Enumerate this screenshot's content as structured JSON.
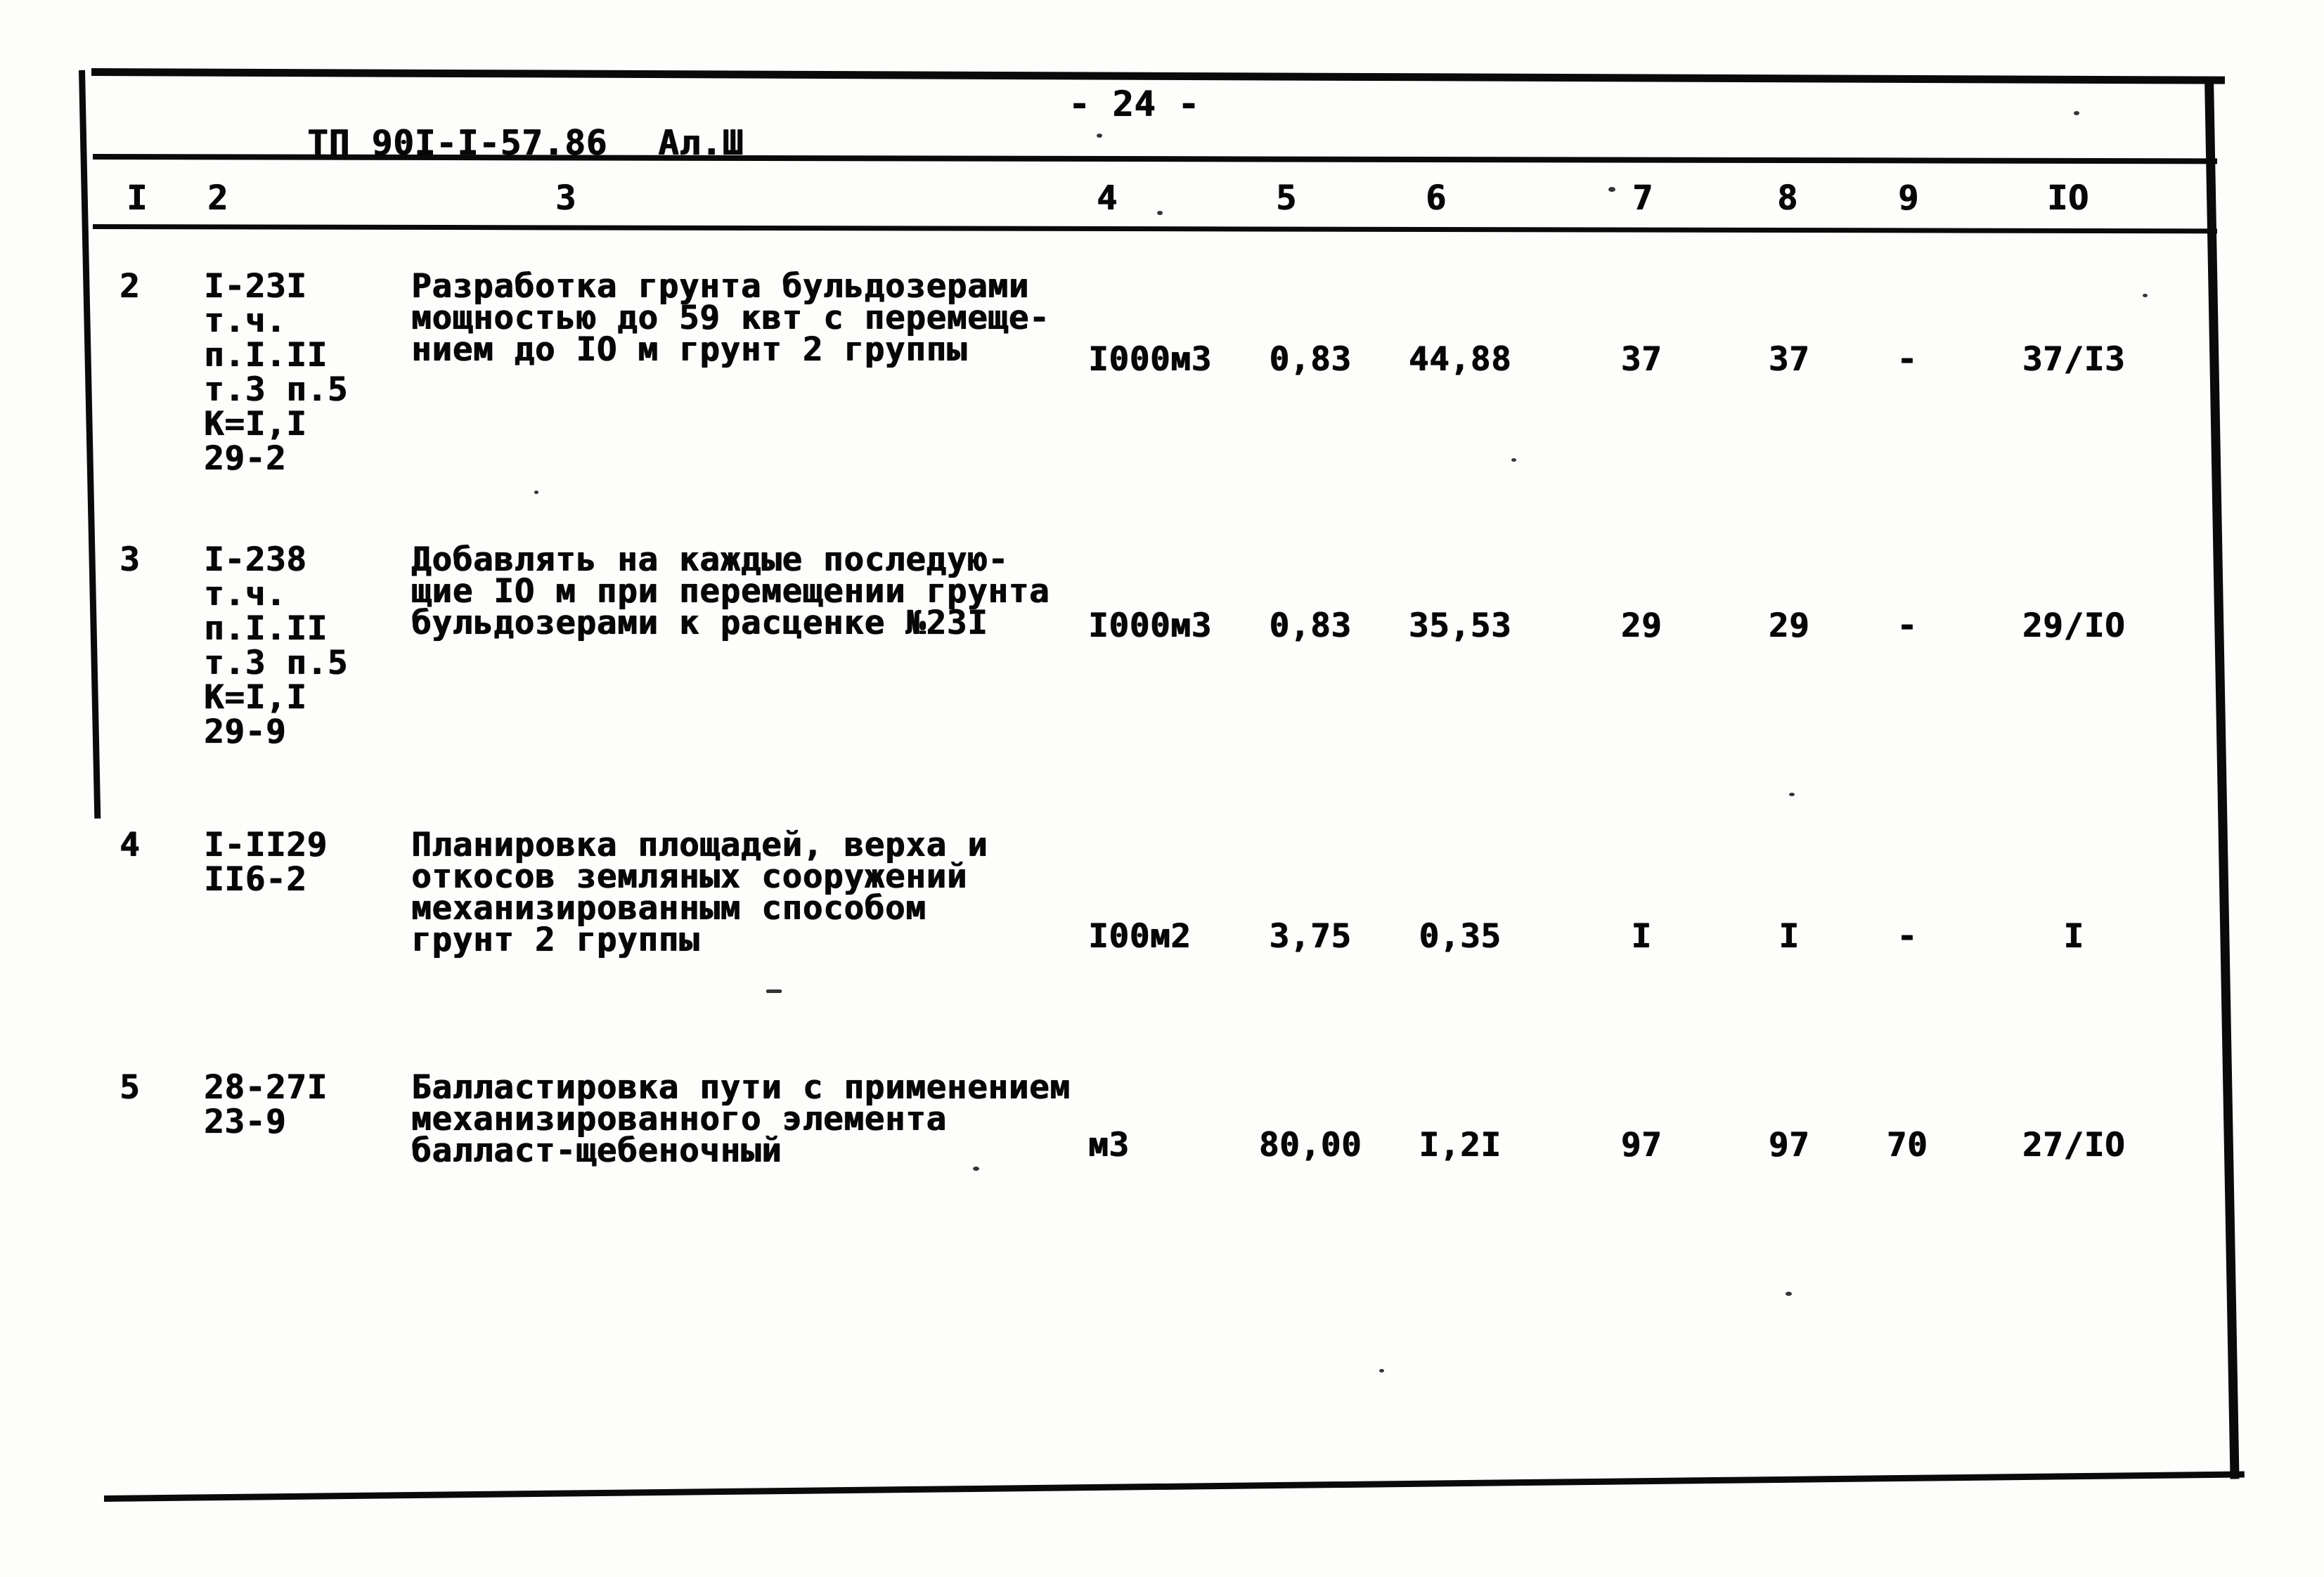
{
  "document": {
    "code": "ТП 90I-I-57.86",
    "album": "Ал.Ш",
    "page": "- 24 -"
  },
  "table": {
    "column_headers": [
      "I",
      "2",
      "3",
      "4",
      "5",
      "6",
      "7",
      "8",
      "9",
      "IO"
    ],
    "rows": [
      {
        "num": "2",
        "basis_lines": [
          "I-23I",
          "т.ч.",
          "п.I.II",
          "т.3 п.5",
          "К=I,I",
          "29-2"
        ],
        "description_lines": [
          "Разработка грунта бульдозерами",
          "мощностью до 59 квт с перемеще-",
          "нием до IO м грунт 2 группы"
        ],
        "unit": "I000м3",
        "values": [
          "0,83",
          "44,88",
          "37",
          "37",
          "-",
          "37/I3"
        ]
      },
      {
        "num": "3",
        "basis_lines": [
          "I-238",
          "т.ч.",
          "п.I.II",
          "т.3 п.5",
          "К=I,I",
          "29-9"
        ],
        "description_lines": [
          "Добавлять на каждые последую-",
          "щие IO м при перемещении грунта",
          "бульдозерами к расценке №23I"
        ],
        "unit": "I000м3",
        "values": [
          "0,83",
          "35,53",
          "29",
          "29",
          "-",
          "29/IO"
        ]
      },
      {
        "num": "4",
        "basis_lines": [
          "I-II29",
          "II6-2"
        ],
        "description_lines": [
          "Планировка площадей, верха и",
          "откосов земляных сооружений",
          "механизированным способом",
          "грунт 2 группы"
        ],
        "unit": "I00м2",
        "values": [
          "3,75",
          "0,35",
          "I",
          "I",
          "-",
          "I"
        ]
      },
      {
        "num": "5",
        "basis_lines": [
          "28-27I",
          "23-9"
        ],
        "description_lines": [
          "Балластировка пути с применением",
          "механизированного элемента",
          "балласт-щебеночный"
        ],
        "unit": "м3",
        "values": [
          "80,00",
          "I,2I",
          "97",
          "97",
          "70",
          "27/IO"
        ]
      }
    ]
  }
}
